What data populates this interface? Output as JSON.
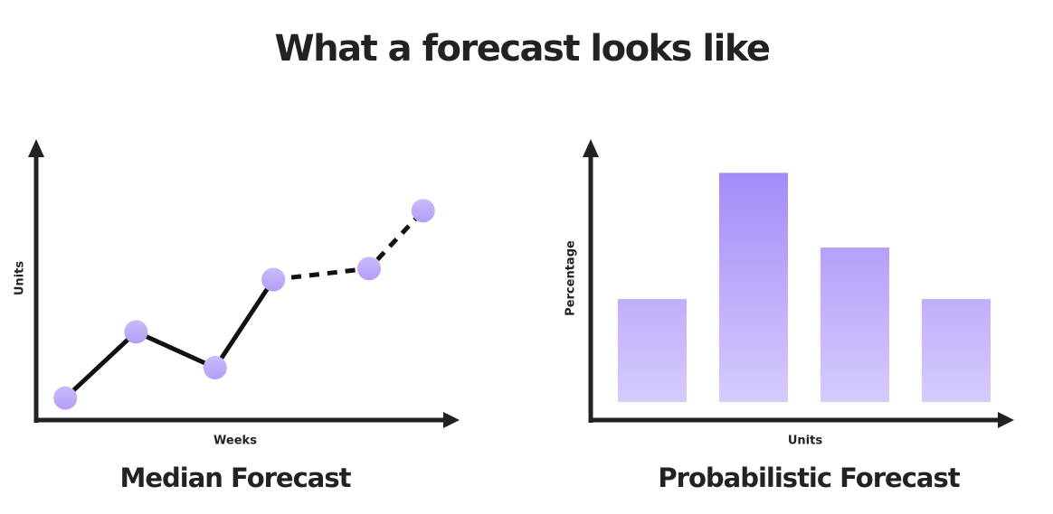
{
  "title": "What a forecast looks like",
  "chart_data": [
    {
      "type": "line",
      "title": "Median Forecast",
      "x_label": "Weeks",
      "y_label": "Units",
      "x": [
        7,
        24,
        43,
        57,
        80,
        93
      ],
      "xlim": [
        0,
        100
      ],
      "ylim": [
        0,
        100
      ],
      "series": [
        {
          "color": "#111111",
          "marker_color": "#b39ef7",
          "dashed": false,
          "values": [
            8,
            32,
            19,
            51,
            null,
            null
          ]
        },
        {
          "color": "#111111",
          "marker_color": "#b39ef7",
          "dashed": true,
          "values": [
            null,
            null,
            null,
            51,
            55,
            76
          ]
        }
      ]
    },
    {
      "type": "bar",
      "title": "Probabilistic Forecast",
      "x_label": "Units",
      "y_label": "Percentage",
      "categories": [
        null,
        null,
        null,
        null
      ],
      "values": [
        40,
        89,
        60,
        40
      ],
      "color": "#a48cf8",
      "ylim": [
        -7,
        100
      ]
    }
  ]
}
